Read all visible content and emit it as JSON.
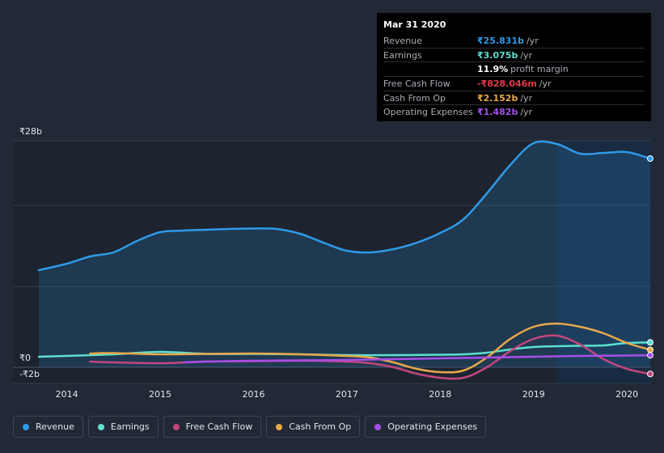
{
  "tooltip": {
    "date": "Mar 31 2020",
    "rows": [
      {
        "label": "Revenue",
        "value": "₹25.831b",
        "unit": "/yr",
        "color": "#2f9ae8"
      },
      {
        "label": "Earnings",
        "value": "₹3.075b",
        "unit": "/yr",
        "color": "#5de0cf"
      },
      {
        "label": "",
        "value": "11.9%",
        "unit": "profit margin",
        "color": "#ffffff"
      },
      {
        "label": "Free Cash Flow",
        "value": "-₹828.046m",
        "unit": "/yr",
        "color": "#e8394b"
      },
      {
        "label": "Cash From Op",
        "value": "₹2.152b",
        "unit": "/yr",
        "color": "#e8a84a"
      },
      {
        "label": "Operating Expenses",
        "value": "₹1.482b",
        "unit": "/yr",
        "color": "#a64fe8"
      }
    ]
  },
  "chart_data": {
    "type": "line",
    "y_tick_labels": [
      "₹28b",
      "₹0",
      "-₹2b"
    ],
    "ylim": [
      -2,
      28
    ],
    "x_tick_labels": [
      "2014",
      "2015",
      "2016",
      "2017",
      "2018",
      "2019",
      "2020"
    ],
    "xlim": [
      2013.7,
      2020.25
    ],
    "future_shade_from": 2019.25,
    "series": [
      {
        "name": "Revenue",
        "color": "#2f9ae8",
        "area": true,
        "x": [
          2013.7,
          2014.0,
          2014.25,
          2014.5,
          2014.75,
          2015.0,
          2015.25,
          2015.5,
          2015.75,
          2016.0,
          2016.25,
          2016.5,
          2016.75,
          2017.0,
          2017.25,
          2017.5,
          2017.75,
          2018.0,
          2018.25,
          2018.5,
          2018.75,
          2019.0,
          2019.25,
          2019.5,
          2019.75,
          2020.0,
          2020.25
        ],
        "y": [
          12.0,
          12.8,
          13.7,
          14.2,
          15.6,
          16.7,
          16.9,
          17.0,
          17.1,
          17.15,
          17.1,
          16.5,
          15.4,
          14.4,
          14.2,
          14.6,
          15.4,
          16.6,
          18.3,
          21.5,
          25.0,
          27.7,
          27.6,
          26.4,
          26.5,
          26.6,
          25.8
        ]
      },
      {
        "name": "Earnings",
        "color": "#5de0cf",
        "x": [
          2013.7,
          2014.0,
          2014.5,
          2015.0,
          2015.5,
          2016.0,
          2016.5,
          2017.0,
          2017.5,
          2018.0,
          2018.25,
          2018.5,
          2018.75,
          2019.0,
          2019.25,
          2019.5,
          2019.75,
          2020.0,
          2020.25
        ],
        "y": [
          1.3,
          1.4,
          1.6,
          1.9,
          1.65,
          1.65,
          1.6,
          1.5,
          1.5,
          1.55,
          1.6,
          1.8,
          2.2,
          2.5,
          2.6,
          2.65,
          2.7,
          3.0,
          3.075
        ]
      },
      {
        "name": "Free Cash Flow",
        "color": "#c2467e",
        "x": [
          2014.25,
          2014.5,
          2015.0,
          2015.5,
          2016.0,
          2016.5,
          2017.0,
          2017.25,
          2017.5,
          2017.75,
          2018.0,
          2018.25,
          2018.5,
          2018.75,
          2019.0,
          2019.25,
          2019.5,
          2019.75,
          2020.0,
          2020.25
        ],
        "y": [
          0.7,
          0.6,
          0.5,
          0.7,
          0.75,
          0.8,
          0.7,
          0.5,
          0.0,
          -0.8,
          -1.3,
          -1.3,
          0.0,
          2.0,
          3.5,
          3.9,
          2.8,
          1.0,
          -0.2,
          -0.828
        ]
      },
      {
        "name": "Cash From Op",
        "color": "#e8a84a",
        "x": [
          2014.25,
          2014.5,
          2015.0,
          2015.5,
          2016.0,
          2016.5,
          2017.0,
          2017.25,
          2017.5,
          2017.75,
          2018.0,
          2018.25,
          2018.5,
          2018.75,
          2019.0,
          2019.25,
          2019.5,
          2019.75,
          2020.0,
          2020.25
        ],
        "y": [
          1.7,
          1.75,
          1.6,
          1.65,
          1.7,
          1.6,
          1.4,
          1.2,
          0.6,
          -0.2,
          -0.6,
          -0.4,
          1.2,
          3.5,
          5.0,
          5.4,
          5.0,
          4.2,
          3.0,
          2.152
        ]
      },
      {
        "name": "Operating Expenses",
        "color": "#a64fe8",
        "x": [
          2015.25,
          2015.5,
          2016.0,
          2016.5,
          2017.0,
          2017.5,
          2018.0,
          2018.5,
          2019.0,
          2019.5,
          2020.0,
          2020.25
        ],
        "y": [
          0.6,
          0.7,
          0.8,
          0.85,
          0.9,
          1.0,
          1.1,
          1.2,
          1.3,
          1.4,
          1.45,
          1.482
        ]
      }
    ]
  },
  "legend": [
    {
      "label": "Revenue",
      "color": "#2f9ae8"
    },
    {
      "label": "Earnings",
      "color": "#5de0cf"
    },
    {
      "label": "Free Cash Flow",
      "color": "#c2467e"
    },
    {
      "label": "Cash From Op",
      "color": "#e8a84a"
    },
    {
      "label": "Operating Expenses",
      "color": "#a64fe8"
    }
  ]
}
